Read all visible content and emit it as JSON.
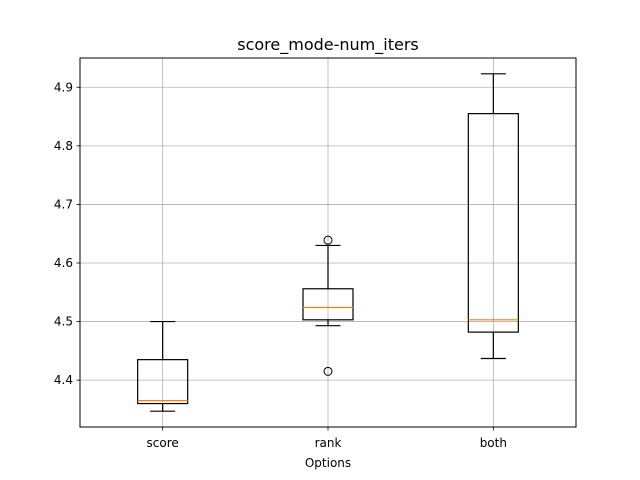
{
  "chart_data": {
    "type": "box",
    "title": "score_mode-num_iters",
    "xlabel": "Options",
    "ylabel": "",
    "ylim": [
      4.32,
      4.95
    ],
    "yticks": [
      4.4,
      4.5,
      4.6,
      4.7,
      4.8,
      4.9
    ],
    "ytick_labels": [
      "4.4",
      "4.5",
      "4.6",
      "4.7",
      "4.8",
      "4.9"
    ],
    "grid": true,
    "categories": [
      "score",
      "rank",
      "both"
    ],
    "boxes": [
      {
        "category": "score",
        "whisker_low": 4.347,
        "q1": 4.36,
        "median": 4.365,
        "q3": 4.435,
        "whisker_high": 4.5,
        "fliers": []
      },
      {
        "category": "rank",
        "whisker_low": 4.493,
        "q1": 4.503,
        "median": 4.524,
        "q3": 4.556,
        "whisker_high": 4.63,
        "fliers": [
          4.415,
          4.639
        ]
      },
      {
        "category": "both",
        "whisker_low": 4.437,
        "q1": 4.482,
        "median": 4.503,
        "q3": 4.855,
        "whisker_high": 4.923,
        "fliers": []
      }
    ],
    "colors": {
      "box": "#000000",
      "median": "#ff7f0e",
      "grid": "#b0b0b0"
    }
  }
}
